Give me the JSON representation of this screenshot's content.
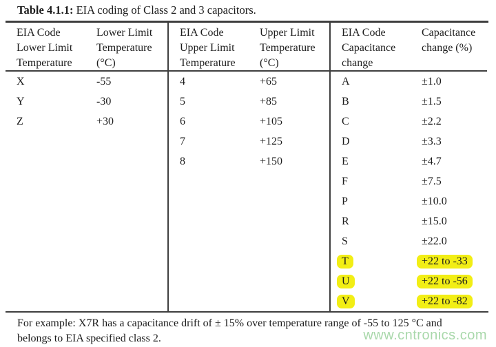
{
  "title": {
    "bold": "Table 4.1.1:",
    "rest": " EIA coding of Class 2 and 3 capacitors."
  },
  "table": {
    "sections": [
      {
        "name": "lower-limit-temperature",
        "header_col1": [
          "EIA Code",
          "Lower Limit",
          "Temperature"
        ],
        "header_col2": [
          "Lower Limit",
          "Temperature",
          "(°C)"
        ],
        "rows": [
          {
            "code": "X",
            "value": "-55",
            "highlight": false
          },
          {
            "code": "Y",
            "value": "-30",
            "highlight": false
          },
          {
            "code": "Z",
            "value": "+30",
            "highlight": false
          }
        ]
      },
      {
        "name": "upper-limit-temperature",
        "header_col1": [
          "EIA Code",
          "Upper Limit",
          "Temperature"
        ],
        "header_col2": [
          "Upper Limit",
          "Temperature",
          "(°C)"
        ],
        "rows": [
          {
            "code": "4",
            "value": "+65",
            "highlight": false
          },
          {
            "code": "5",
            "value": "+85",
            "highlight": false
          },
          {
            "code": "6",
            "value": "+105",
            "highlight": false
          },
          {
            "code": "7",
            "value": "+125",
            "highlight": false
          },
          {
            "code": "8",
            "value": "+150",
            "highlight": false
          }
        ]
      },
      {
        "name": "capacitance-change",
        "header_col1": [
          "EIA Code",
          "Capacitance",
          "change"
        ],
        "header_col2": [
          "Capacitance",
          "change (%)"
        ],
        "rows": [
          {
            "code": "A",
            "value": "±1.0",
            "highlight": false
          },
          {
            "code": "B",
            "value": "±1.5",
            "highlight": false
          },
          {
            "code": "C",
            "value": "±2.2",
            "highlight": false
          },
          {
            "code": "D",
            "value": "±3.3",
            "highlight": false
          },
          {
            "code": "E",
            "value": "±4.7",
            "highlight": false
          },
          {
            "code": "F",
            "value": "±7.5",
            "highlight": false
          },
          {
            "code": "P",
            "value": "±10.0",
            "highlight": false
          },
          {
            "code": "R",
            "value": "±15.0",
            "highlight": false
          },
          {
            "code": "S",
            "value": "±22.0",
            "highlight": false
          },
          {
            "code": "T",
            "value": "+22 to -33",
            "highlight": true
          },
          {
            "code": "U",
            "value": "+22 to -56",
            "highlight": true
          },
          {
            "code": "V",
            "value": "+22 to -82",
            "highlight": true
          }
        ]
      }
    ]
  },
  "footer": {
    "line1": "For example: X7R has a capacitance drift of ± 15% over temperature range of -55 to 125 °C and",
    "line2": "belongs to EIA specified class 2."
  },
  "watermark": "www.cntronics.com",
  "colors": {
    "highlight": "#f2ee15",
    "watermark": "#a9d8ab",
    "rule": "#3e3e3e",
    "text": "#1c1c1c"
  }
}
